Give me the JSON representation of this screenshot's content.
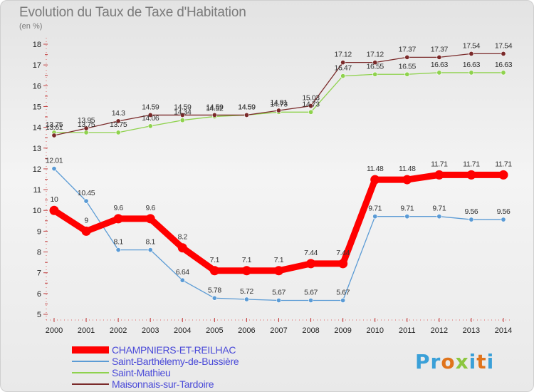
{
  "title": "Evolution du Taux de Taxe d'Habitation",
  "unit_label": "(en %)",
  "logo": {
    "text": "Proxiti",
    "letters": [
      {
        "ch": "P",
        "color": "#3aa0d8"
      },
      {
        "ch": "r",
        "color": "#3aa0d8"
      },
      {
        "ch": "o",
        "color": "#e0741c"
      },
      {
        "ch": "x",
        "color": "#8cc63f"
      },
      {
        "ch": "i",
        "color": "#3aa0d8"
      },
      {
        "ch": "t",
        "color": "#e0741c"
      },
      {
        "ch": "i",
        "color": "#3aa0d8"
      }
    ]
  },
  "chart_data": {
    "type": "line",
    "title": "Evolution du Taux de Taxe d'Habitation",
    "ylabel": "(en %)",
    "xlabel": "",
    "x": [
      "2000",
      "2001",
      "2002",
      "2003",
      "2004",
      "2005",
      "2006",
      "2007",
      "2008",
      "2009",
      "2010",
      "2011",
      "2012",
      "2013",
      "2014"
    ],
    "ylim": [
      5,
      18
    ],
    "yticks": [
      5,
      6,
      7,
      8,
      9,
      10,
      11,
      12,
      13,
      14,
      15,
      16,
      17,
      18
    ],
    "grid": false,
    "legend": "bottom-left",
    "series": [
      {
        "name": "CHAMPNIERS-ET-REILHAC",
        "color": "#ff0000",
        "emphasis": true,
        "values": [
          10,
          9,
          9.6,
          9.6,
          8.2,
          7.1,
          7.1,
          7.1,
          7.44,
          7.44,
          11.48,
          11.48,
          11.71,
          11.71,
          11.71
        ],
        "labels": [
          "10",
          "9",
          "9.6",
          "9.6",
          "8.2",
          "7.1",
          "7.1",
          "7.1",
          "7.44",
          "7.44",
          "11.48",
          "11.48",
          "11.71",
          "11.71",
          "11.71"
        ]
      },
      {
        "name": "Saint-Barthélemy-de-Bussière",
        "color": "#5b9bd5",
        "values": [
          12.01,
          10.45,
          8.1,
          8.1,
          6.64,
          5.78,
          5.72,
          5.67,
          5.67,
          5.67,
          9.71,
          9.71,
          9.71,
          9.56,
          9.56
        ],
        "labels": [
          "12.01",
          "10.45",
          "8.1",
          "8.1",
          "6.64",
          "5.78",
          "5.72",
          "5.67",
          "5.67",
          "5.67",
          "9.71",
          "9.71",
          "9.71",
          "9.56",
          "9.56"
        ]
      },
      {
        "name": "Saint-Mathieu",
        "color": "#8fd24e",
        "values": [
          13.75,
          13.75,
          13.75,
          14.06,
          14.34,
          14.52,
          14.59,
          14.73,
          14.73,
          16.47,
          16.55,
          16.55,
          16.63,
          16.63,
          16.63
        ],
        "labels": [
          "13.75",
          "13.75",
          "13.75",
          "14.06",
          "14.34",
          "14.52",
          "14.59",
          "14.73",
          "14.73",
          "16.47",
          "16.55",
          "16.55",
          "16.63",
          "16.63",
          "16.63"
        ]
      },
      {
        "name": "Maisonnais-sur-Tardoire",
        "color": "#7a2a2a",
        "values": [
          13.61,
          13.95,
          14.3,
          14.59,
          14.59,
          14.59,
          14.59,
          14.81,
          15.03,
          17.12,
          17.12,
          17.37,
          17.37,
          17.54,
          17.54
        ],
        "labels": [
          "13.61",
          "13.95",
          "14.3",
          "14.59",
          "14.59",
          "14.59",
          "14.59",
          "14.81",
          "15.03",
          "17.12",
          "17.12",
          "17.37",
          "17.37",
          "17.54",
          "17.54"
        ]
      }
    ]
  }
}
